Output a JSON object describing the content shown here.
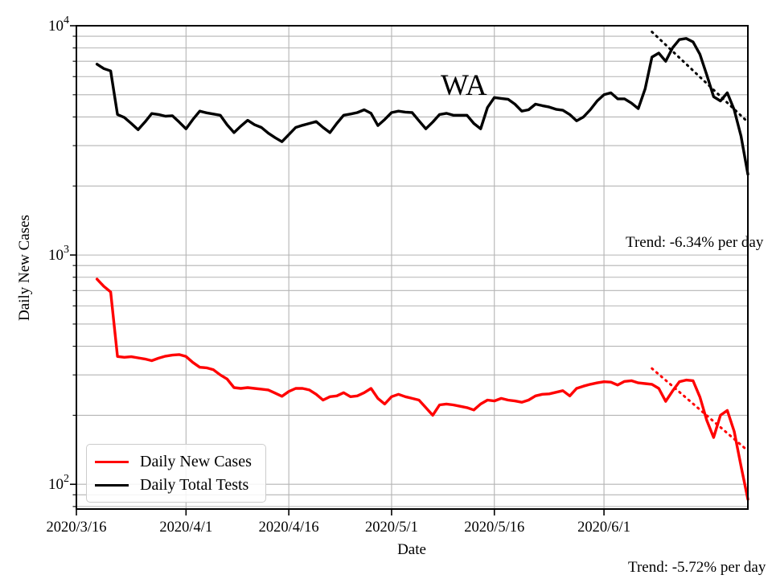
{
  "figure": {
    "background": "#ffffff",
    "grid_color": "#b4b4b4",
    "accent_red": "#ff0000",
    "accent_black": "#000000"
  },
  "chart_data": {
    "type": "line",
    "annotation": "WA",
    "xlabel": "Date",
    "ylabel": "Daily New Cases",
    "y_scale": "log",
    "ylim": [
      78,
      10000
    ],
    "xlim_days": [
      0,
      98
    ],
    "grid": true,
    "legend_position": "lower left",
    "x_unit": "days since 2020/3/16",
    "x_tick_days": [
      0,
      16,
      31,
      46,
      61,
      77
    ],
    "x_tick_labels": [
      "2020/3/16",
      "2020/4/1",
      "2020/4/16",
      "2020/5/1",
      "2020/5/16",
      "2020/6/1"
    ],
    "y_ticks": [
      {
        "base": "10",
        "exp": "2",
        "value": 100
      },
      {
        "base": "10",
        "exp": "3",
        "value": 1000
      },
      {
        "base": "10",
        "exp": "4",
        "value": 10000
      }
    ],
    "start_date": "2020/3/19",
    "end_date": "2020/6/22",
    "series": [
      {
        "name": "Daily New Cases",
        "color": "#ff0000",
        "start_day": 3,
        "values": [
          785,
          730,
          690,
          361,
          358,
          360,
          356,
          352,
          346,
          355,
          362,
          366,
          368,
          361,
          340,
          324,
          322,
          316,
          300,
          288,
          264,
          262,
          264,
          262,
          260,
          258,
          250,
          242,
          254,
          262,
          262,
          258,
          247,
          233,
          241,
          243,
          251,
          241,
          243,
          251,
          262,
          237,
          224,
          241,
          247,
          241,
          237,
          233,
          216,
          200,
          222,
          224,
          222,
          219,
          216,
          211,
          224,
          233,
          231,
          237,
          233,
          231,
          228,
          233,
          243,
          247,
          248,
          252,
          256,
          243,
          262,
          268,
          273,
          277,
          280,
          279,
          271,
          281,
          283,
          277,
          275,
          273,
          262,
          230,
          255,
          280,
          285,
          283,
          240,
          190,
          160,
          200,
          210,
          170,
          120,
          86
        ]
      },
      {
        "name": "Daily Total Tests",
        "color": "#000000",
        "start_day": 3,
        "values": [
          6800,
          6500,
          6350,
          4100,
          3980,
          3750,
          3520,
          3800,
          4140,
          4100,
          4030,
          4050,
          3800,
          3550,
          3900,
          4240,
          4170,
          4120,
          4070,
          3700,
          3420,
          3650,
          3870,
          3700,
          3600,
          3400,
          3250,
          3120,
          3350,
          3600,
          3680,
          3750,
          3820,
          3600,
          3420,
          3750,
          4070,
          4120,
          4180,
          4300,
          4150,
          3670,
          3900,
          4180,
          4240,
          4200,
          4180,
          3850,
          3550,
          3800,
          4100,
          4150,
          4070,
          4070,
          4070,
          3750,
          3550,
          4400,
          4860,
          4820,
          4780,
          4550,
          4240,
          4300,
          4550,
          4480,
          4420,
          4320,
          4280,
          4100,
          3850,
          4000,
          4300,
          4700,
          5000,
          5100,
          4800,
          4800,
          4600,
          4350,
          5300,
          7300,
          7600,
          7000,
          8000,
          8700,
          8800,
          8500,
          7500,
          6100,
          4900,
          4700,
          5100,
          4300,
          3300,
          2250
        ]
      }
    ],
    "trend_lines": [
      {
        "name": "cases-trend",
        "label": "Trend: -5.72% per day",
        "percent_per_day": -5.72,
        "color": "#ff0000",
        "style": "dotted",
        "start_day": 84,
        "start_value": 320,
        "end_day": 98,
        "end_value": 140
      },
      {
        "name": "tests-trend",
        "label": "Trend: -6.34% per day",
        "percent_per_day": -6.34,
        "color": "#000000",
        "style": "dotted",
        "start_day": 84,
        "start_value": 9400,
        "end_day": 98,
        "end_value": 3800
      }
    ]
  },
  "legend": {
    "items": [
      {
        "label": "Daily New Cases",
        "color": "#ff0000"
      },
      {
        "label": "Daily Total Tests",
        "color": "#000000"
      }
    ]
  }
}
